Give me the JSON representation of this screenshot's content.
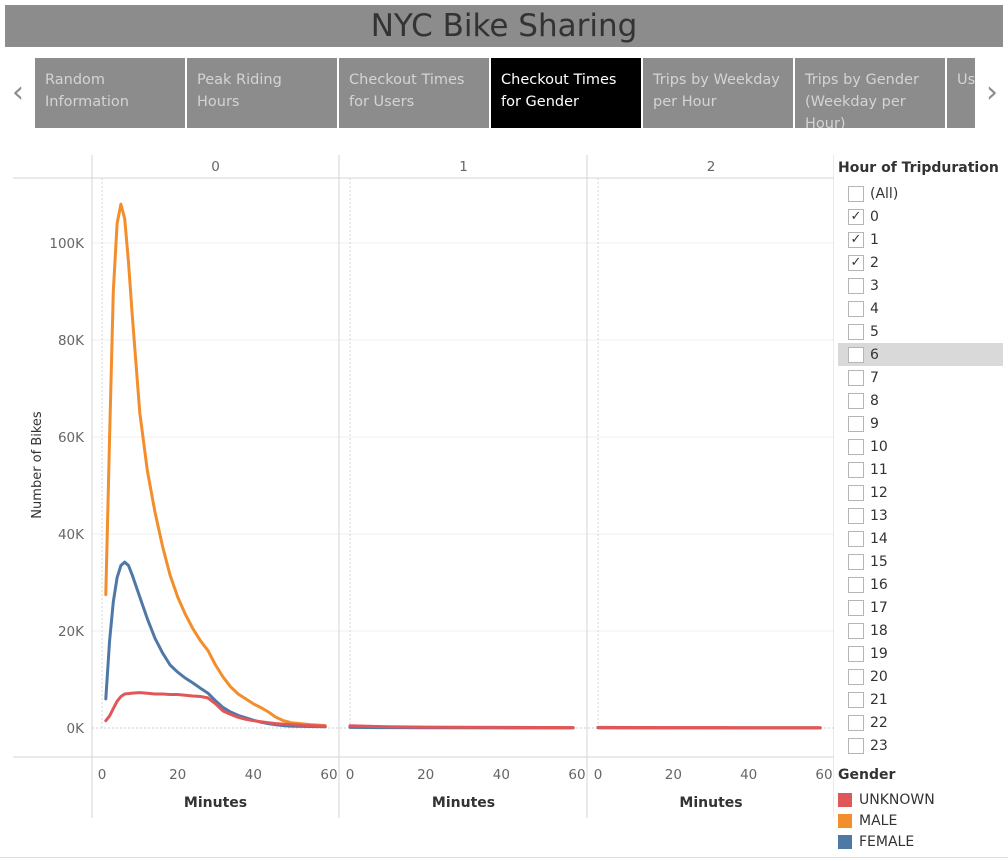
{
  "dashboard": {
    "title": "NYC Bike Sharing"
  },
  "nav": {
    "prev_icon": "chevron-left-icon",
    "next_icon": "chevron-right-icon"
  },
  "tabs": [
    {
      "label": "Random Information",
      "active": false
    },
    {
      "label": "Peak Riding Hours",
      "active": false
    },
    {
      "label": "Checkout Times for Users",
      "active": false
    },
    {
      "label": "Checkout Times for Gender",
      "active": true
    },
    {
      "label": "Trips by Weekday per Hour",
      "active": false
    },
    {
      "label": "Trips by Gender (Weekday per Hour)",
      "active": false
    },
    {
      "label": "User Gender",
      "active": false
    }
  ],
  "filter": {
    "title": "Hour of Tripduration",
    "items": [
      {
        "label": "(All)",
        "checked": false
      },
      {
        "label": "0",
        "checked": true
      },
      {
        "label": "1",
        "checked": true
      },
      {
        "label": "2",
        "checked": true
      },
      {
        "label": "3",
        "checked": false
      },
      {
        "label": "4",
        "checked": false
      },
      {
        "label": "5",
        "checked": false
      },
      {
        "label": "6",
        "checked": false,
        "hover": true
      },
      {
        "label": "7",
        "checked": false
      },
      {
        "label": "8",
        "checked": false
      },
      {
        "label": "9",
        "checked": false
      },
      {
        "label": "10",
        "checked": false
      },
      {
        "label": "11",
        "checked": false
      },
      {
        "label": "12",
        "checked": false
      },
      {
        "label": "13",
        "checked": false
      },
      {
        "label": "14",
        "checked": false
      },
      {
        "label": "15",
        "checked": false
      },
      {
        "label": "16",
        "checked": false
      },
      {
        "label": "17",
        "checked": false
      },
      {
        "label": "18",
        "checked": false
      },
      {
        "label": "19",
        "checked": false
      },
      {
        "label": "20",
        "checked": false
      },
      {
        "label": "21",
        "checked": false
      },
      {
        "label": "22",
        "checked": false
      },
      {
        "label": "23",
        "checked": false
      }
    ]
  },
  "legend": {
    "title": "Gender",
    "items": [
      {
        "label": "UNKNOWN",
        "color": "#e15759"
      },
      {
        "label": "MALE",
        "color": "#f28e2b"
      },
      {
        "label": "FEMALE",
        "color": "#4e79a7"
      }
    ]
  },
  "chart_data": {
    "type": "line",
    "ylabel": "Number of Bikes",
    "xlabel": "Minutes",
    "ylim": [
      0,
      110000
    ],
    "xlim": [
      0,
      60
    ],
    "y_ticks": [
      0,
      20000,
      40000,
      60000,
      80000,
      100000
    ],
    "y_tick_labels": [
      "0K",
      "20K",
      "40K",
      "60K",
      "80K",
      "100K"
    ],
    "x_ticks": [
      0,
      20,
      40,
      60
    ],
    "x_tick_labels": [
      "0",
      "20",
      "40",
      "60"
    ],
    "grid": true,
    "legend_position": "right",
    "panels": [
      {
        "label": "0",
        "series": [
          {
            "name": "MALE",
            "color": "#f28e2b",
            "x": [
              1,
              2,
              3,
              4,
              5,
              6,
              7,
              8,
              10,
              12,
              14,
              16,
              18,
              20,
              22,
              24,
              26,
              28,
              30,
              32,
              34,
              36,
              38,
              40,
              42,
              44,
              46,
              48,
              50,
              55,
              59
            ],
            "values": [
              27500,
              60000,
              90000,
              104000,
              108000,
              105000,
              96000,
              85000,
              65000,
              53000,
              44500,
              37500,
              31500,
              27000,
              23500,
              20500,
              18000,
              16000,
              13000,
              10500,
              8500,
              7000,
              6000,
              5000,
              4200,
              3300,
              2200,
              1500,
              1100,
              700,
              500
            ]
          },
          {
            "name": "FEMALE",
            "color": "#4e79a7",
            "x": [
              1,
              2,
              3,
              4,
              5,
              6,
              7,
              8,
              10,
              12,
              14,
              16,
              18,
              20,
              22,
              24,
              26,
              28,
              30,
              32,
              34,
              36,
              38,
              40,
              42,
              44,
              46,
              48,
              50,
              55,
              59
            ],
            "values": [
              6000,
              18000,
              26000,
              31000,
              33500,
              34200,
              33500,
              31500,
              27000,
              22500,
              18500,
              15500,
              13000,
              11500,
              10300,
              9300,
              8200,
              7200,
              5600,
              4200,
              3300,
              2600,
              2100,
              1600,
              1200,
              900,
              650,
              500,
              400,
              300,
              250
            ]
          },
          {
            "name": "UNKNOWN",
            "color": "#e15759",
            "x": [
              1,
              2,
              3,
              4,
              5,
              6,
              7,
              8,
              10,
              12,
              14,
              16,
              18,
              20,
              22,
              24,
              26,
              28,
              30,
              32,
              34,
              36,
              38,
              40,
              42,
              44,
              46,
              48,
              50,
              55,
              59
            ],
            "values": [
              1500,
              2500,
              4000,
              5500,
              6500,
              7000,
              7100,
              7200,
              7300,
              7150,
              7000,
              7000,
              6900,
              6900,
              6750,
              6600,
              6500,
              6200,
              5000,
              3500,
              2800,
              2200,
              1800,
              1500,
              1300,
              1100,
              900,
              800,
              700,
              500,
              400
            ]
          }
        ]
      },
      {
        "label": "1",
        "series": [
          {
            "name": "MALE",
            "color": "#f28e2b",
            "x": [
              0,
              10,
              20,
              30,
              40,
              50,
              59
            ],
            "values": [
              250,
              150,
              100,
              80,
              60,
              50,
              40
            ]
          },
          {
            "name": "FEMALE",
            "color": "#4e79a7",
            "x": [
              0,
              10,
              20,
              30,
              40,
              50,
              59
            ],
            "values": [
              120,
              80,
              60,
              50,
              40,
              30,
              25
            ]
          },
          {
            "name": "UNKNOWN",
            "color": "#e15759",
            "x": [
              0,
              10,
              20,
              30,
              40,
              50,
              59
            ],
            "values": [
              450,
              250,
              180,
              150,
              120,
              100,
              80
            ]
          }
        ]
      },
      {
        "label": "2",
        "series": [
          {
            "name": "MALE",
            "color": "#f28e2b",
            "x": [
              0,
              10,
              20,
              30,
              40,
              50,
              59
            ],
            "values": [
              80,
              60,
              50,
              40,
              30,
              30,
              25
            ]
          },
          {
            "name": "FEMALE",
            "color": "#4e79a7",
            "x": [
              0,
              10,
              20,
              30,
              40,
              50,
              59
            ],
            "values": [
              40,
              30,
              25,
              20,
              20,
              15,
              15
            ]
          },
          {
            "name": "UNKNOWN",
            "color": "#e15759",
            "x": [
              0,
              10,
              20,
              30,
              40,
              50,
              59
            ],
            "values": [
              120,
              100,
              90,
              80,
              70,
              60,
              50
            ]
          }
        ]
      }
    ]
  }
}
